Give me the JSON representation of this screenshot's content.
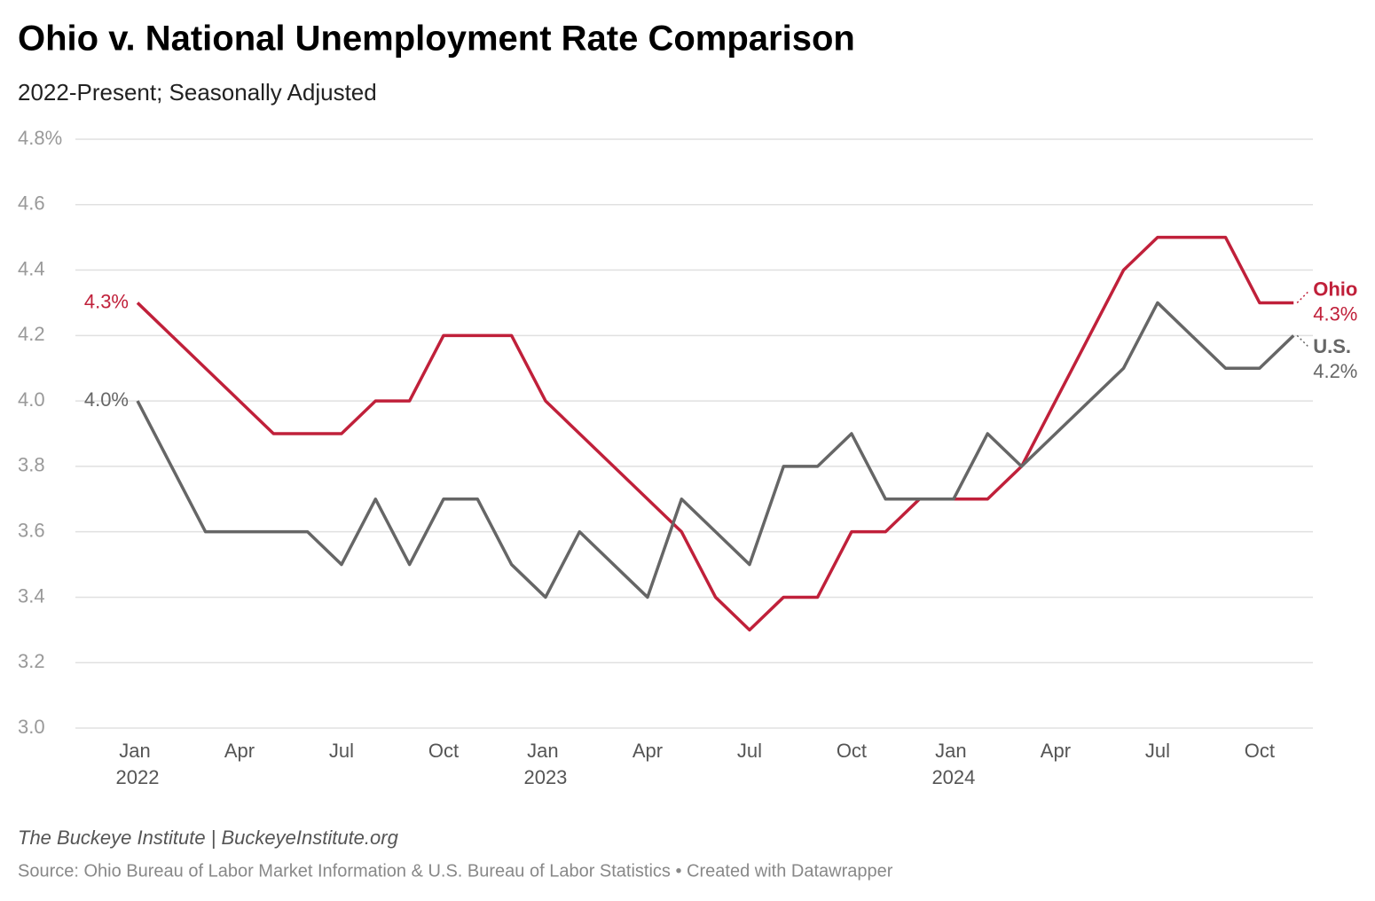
{
  "chart_data": {
    "type": "line",
    "title": "Ohio v. National Unemployment Rate Comparison",
    "subtitle": "2022-Present; Seasonally Adjusted",
    "categories": [
      "Jan 2022",
      null,
      null,
      "Apr",
      null,
      null,
      "Jul",
      null,
      null,
      "Oct",
      null,
      null,
      "Jan 2023",
      null,
      null,
      "Apr",
      null,
      null,
      "Jul",
      null,
      null,
      "Oct",
      null,
      null,
      "Jan 2024",
      null,
      null,
      "Apr",
      null,
      null,
      "Jul",
      null,
      null,
      "Oct",
      null
    ],
    "series": [
      {
        "name": "Ohio",
        "color": "#c0203a",
        "values": [
          4.3,
          4.2,
          4.1,
          4.0,
          3.9,
          3.9,
          3.9,
          4.0,
          4.0,
          4.2,
          4.2,
          4.2,
          4.0,
          3.9,
          3.8,
          3.7,
          3.6,
          3.4,
          3.3,
          3.4,
          3.4,
          3.6,
          3.6,
          3.7,
          3.7,
          3.7,
          3.8,
          4.0,
          4.2,
          4.4,
          4.5,
          4.5,
          4.5,
          4.3,
          4.3
        ],
        "value_labels": [
          "4.3%",
          null,
          null,
          null,
          null,
          null,
          null,
          null,
          null,
          null,
          null,
          null,
          null,
          null,
          null,
          null,
          null,
          null,
          null,
          null,
          null,
          null,
          null,
          null,
          null,
          null,
          null,
          null,
          null,
          null,
          null,
          null,
          null,
          null,
          "4.3%"
        ]
      },
      {
        "name": "U.S.",
        "color": "#666666",
        "values": [
          4.0,
          3.8,
          3.6,
          3.6,
          3.6,
          3.6,
          3.5,
          3.7,
          3.5,
          3.7,
          3.7,
          3.5,
          3.4,
          3.6,
          3.5,
          3.4,
          3.7,
          3.6,
          3.5,
          3.8,
          3.8,
          3.9,
          3.7,
          3.7,
          3.7,
          3.9,
          3.8,
          3.9,
          4.0,
          4.1,
          4.3,
          4.2,
          4.1,
          4.1,
          4.2
        ],
        "value_labels": [
          "4.0%",
          null,
          null,
          null,
          null,
          null,
          null,
          null,
          null,
          null,
          null,
          null,
          null,
          null,
          null,
          null,
          null,
          null,
          null,
          null,
          null,
          null,
          null,
          null,
          null,
          null,
          null,
          null,
          null,
          null,
          null,
          null,
          null,
          null,
          "4.2%"
        ]
      }
    ],
    "ylim": [
      3.0,
      4.8
    ],
    "yticks": [
      {
        "value": 3.0,
        "label": "3.0"
      },
      3.2,
      3.4,
      3.6,
      3.8,
      {
        "value": 4.0,
        "label": "4.0"
      },
      4.2,
      4.4,
      4.6,
      {
        "value": 4.8,
        "label": "4.8%"
      }
    ],
    "grid": true,
    "credit": "The Buckeye Institute | BuckeyeInstitute.org",
    "source": "Source: Ohio Bureau of Labor Market Information & U.S. Bureau of Labor Statistics • Created with Datawrapper"
  }
}
